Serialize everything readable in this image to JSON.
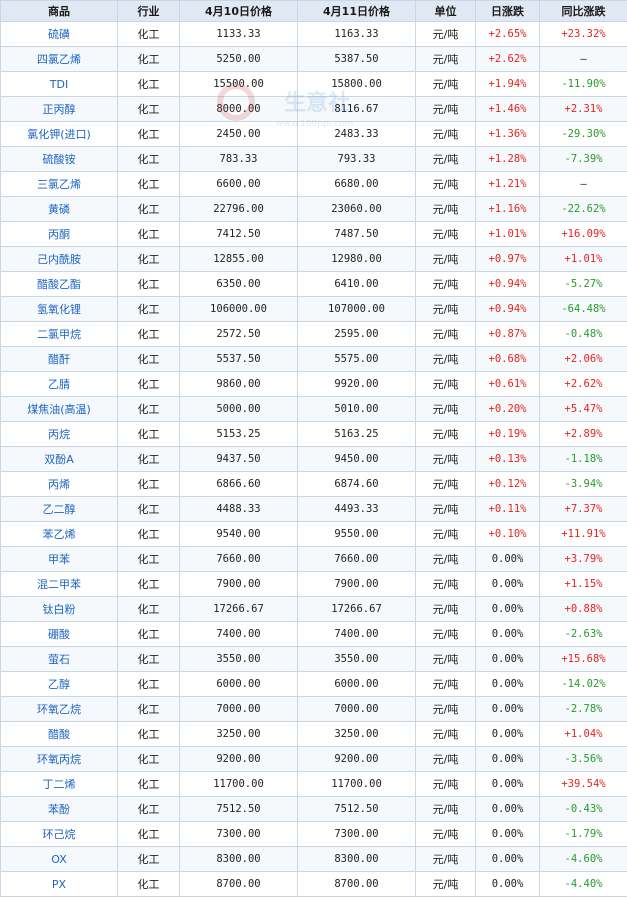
{
  "headers": [
    "商品",
    "行业",
    "4月10日价格",
    "4月11日价格",
    "单位",
    "日涨跌",
    "同比涨跌"
  ],
  "watermark": {
    "name": "生意社",
    "url": "www.100ppi.com"
  },
  "colors": {
    "up": "#e8231d",
    "down": "#2a9a2a",
    "header_bg": "#dfe8f3",
    "border": "#c9d6e6",
    "name_link": "#1c64c4"
  },
  "rows": [
    {
      "name": "硫磺",
      "industry": "化工",
      "p1": "1133.33",
      "p2": "1163.33",
      "unit": "元/吨",
      "day": "+2.65%",
      "yoy": "+23.32%"
    },
    {
      "name": "四氯乙烯",
      "industry": "化工",
      "p1": "5250.00",
      "p2": "5387.50",
      "unit": "元/吨",
      "day": "+2.62%",
      "yoy": "—"
    },
    {
      "name": "TDI",
      "industry": "化工",
      "p1": "15500.00",
      "p2": "15800.00",
      "unit": "元/吨",
      "day": "+1.94%",
      "yoy": "-11.90%"
    },
    {
      "name": "正丙醇",
      "industry": "化工",
      "p1": "8000.00",
      "p2": "8116.67",
      "unit": "元/吨",
      "day": "+1.46%",
      "yoy": "+2.31%"
    },
    {
      "name": "氯化钾(进口)",
      "industry": "化工",
      "p1": "2450.00",
      "p2": "2483.33",
      "unit": "元/吨",
      "day": "+1.36%",
      "yoy": "-29.30%"
    },
    {
      "name": "硫酸铵",
      "industry": "化工",
      "p1": "783.33",
      "p2": "793.33",
      "unit": "元/吨",
      "day": "+1.28%",
      "yoy": "-7.39%"
    },
    {
      "name": "三氯乙烯",
      "industry": "化工",
      "p1": "6600.00",
      "p2": "6680.00",
      "unit": "元/吨",
      "day": "+1.21%",
      "yoy": "—"
    },
    {
      "name": "黄磷",
      "industry": "化工",
      "p1": "22796.00",
      "p2": "23060.00",
      "unit": "元/吨",
      "day": "+1.16%",
      "yoy": "-22.62%"
    },
    {
      "name": "丙酮",
      "industry": "化工",
      "p1": "7412.50",
      "p2": "7487.50",
      "unit": "元/吨",
      "day": "+1.01%",
      "yoy": "+16.09%"
    },
    {
      "name": "己内酰胺",
      "industry": "化工",
      "p1": "12855.00",
      "p2": "12980.00",
      "unit": "元/吨",
      "day": "+0.97%",
      "yoy": "+1.01%"
    },
    {
      "name": "醋酸乙酯",
      "industry": "化工",
      "p1": "6350.00",
      "p2": "6410.00",
      "unit": "元/吨",
      "day": "+0.94%",
      "yoy": "-5.27%"
    },
    {
      "name": "氢氧化锂",
      "industry": "化工",
      "p1": "106000.00",
      "p2": "107000.00",
      "unit": "元/吨",
      "day": "+0.94%",
      "yoy": "-64.48%"
    },
    {
      "name": "二氯甲烷",
      "industry": "化工",
      "p1": "2572.50",
      "p2": "2595.00",
      "unit": "元/吨",
      "day": "+0.87%",
      "yoy": "-0.48%"
    },
    {
      "name": "醋酐",
      "industry": "化工",
      "p1": "5537.50",
      "p2": "5575.00",
      "unit": "元/吨",
      "day": "+0.68%",
      "yoy": "+2.06%"
    },
    {
      "name": "乙腈",
      "industry": "化工",
      "p1": "9860.00",
      "p2": "9920.00",
      "unit": "元/吨",
      "day": "+0.61%",
      "yoy": "+2.62%"
    },
    {
      "name": "煤焦油(高温)",
      "industry": "化工",
      "p1": "5000.00",
      "p2": "5010.00",
      "unit": "元/吨",
      "day": "+0.20%",
      "yoy": "+5.47%"
    },
    {
      "name": "丙烷",
      "industry": "化工",
      "p1": "5153.25",
      "p2": "5163.25",
      "unit": "元/吨",
      "day": "+0.19%",
      "yoy": "+2.89%"
    },
    {
      "name": "双酚A",
      "industry": "化工",
      "p1": "9437.50",
      "p2": "9450.00",
      "unit": "元/吨",
      "day": "+0.13%",
      "yoy": "-1.18%"
    },
    {
      "name": "丙烯",
      "industry": "化工",
      "p1": "6866.60",
      "p2": "6874.60",
      "unit": "元/吨",
      "day": "+0.12%",
      "yoy": "-3.94%"
    },
    {
      "name": "乙二醇",
      "industry": "化工",
      "p1": "4488.33",
      "p2": "4493.33",
      "unit": "元/吨",
      "day": "+0.11%",
      "yoy": "+7.37%"
    },
    {
      "name": "苯乙烯",
      "industry": "化工",
      "p1": "9540.00",
      "p2": "9550.00",
      "unit": "元/吨",
      "day": "+0.10%",
      "yoy": "+11.91%"
    },
    {
      "name": "甲苯",
      "industry": "化工",
      "p1": "7660.00",
      "p2": "7660.00",
      "unit": "元/吨",
      "day": "0.00%",
      "yoy": "+3.79%"
    },
    {
      "name": "混二甲苯",
      "industry": "化工",
      "p1": "7900.00",
      "p2": "7900.00",
      "unit": "元/吨",
      "day": "0.00%",
      "yoy": "+1.15%"
    },
    {
      "name": "钛白粉",
      "industry": "化工",
      "p1": "17266.67",
      "p2": "17266.67",
      "unit": "元/吨",
      "day": "0.00%",
      "yoy": "+0.88%"
    },
    {
      "name": "硼酸",
      "industry": "化工",
      "p1": "7400.00",
      "p2": "7400.00",
      "unit": "元/吨",
      "day": "0.00%",
      "yoy": "-2.63%"
    },
    {
      "name": "萤石",
      "industry": "化工",
      "p1": "3550.00",
      "p2": "3550.00",
      "unit": "元/吨",
      "day": "0.00%",
      "yoy": "+15.68%"
    },
    {
      "name": "乙醇",
      "industry": "化工",
      "p1": "6000.00",
      "p2": "6000.00",
      "unit": "元/吨",
      "day": "0.00%",
      "yoy": "-14.02%"
    },
    {
      "name": "环氧乙烷",
      "industry": "化工",
      "p1": "7000.00",
      "p2": "7000.00",
      "unit": "元/吨",
      "day": "0.00%",
      "yoy": "-2.78%"
    },
    {
      "name": "醋酸",
      "industry": "化工",
      "p1": "3250.00",
      "p2": "3250.00",
      "unit": "元/吨",
      "day": "0.00%",
      "yoy": "+1.04%"
    },
    {
      "name": "环氧丙烷",
      "industry": "化工",
      "p1": "9200.00",
      "p2": "9200.00",
      "unit": "元/吨",
      "day": "0.00%",
      "yoy": "-3.56%"
    },
    {
      "name": "丁二烯",
      "industry": "化工",
      "p1": "11700.00",
      "p2": "11700.00",
      "unit": "元/吨",
      "day": "0.00%",
      "yoy": "+39.54%"
    },
    {
      "name": "苯酚",
      "industry": "化工",
      "p1": "7512.50",
      "p2": "7512.50",
      "unit": "元/吨",
      "day": "0.00%",
      "yoy": "-0.43%"
    },
    {
      "name": "环己烷",
      "industry": "化工",
      "p1": "7300.00",
      "p2": "7300.00",
      "unit": "元/吨",
      "day": "0.00%",
      "yoy": "-1.79%"
    },
    {
      "name": "OX",
      "industry": "化工",
      "p1": "8300.00",
      "p2": "8300.00",
      "unit": "元/吨",
      "day": "0.00%",
      "yoy": "-4.60%"
    },
    {
      "name": "PX",
      "industry": "化工",
      "p1": "8700.00",
      "p2": "8700.00",
      "unit": "元/吨",
      "day": "0.00%",
      "yoy": "-4.40%"
    }
  ]
}
